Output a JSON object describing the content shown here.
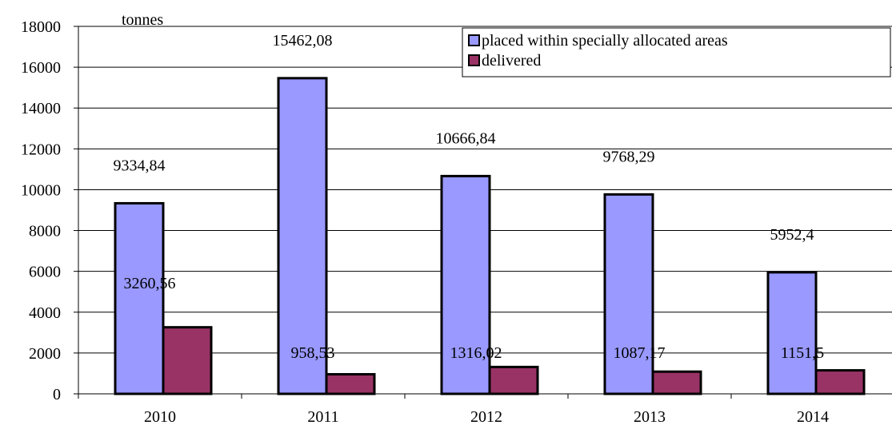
{
  "chart_data": {
    "type": "bar",
    "ylabel": "tonnes",
    "categories": [
      "2010",
      "2011",
      "2012",
      "2013",
      "2014"
    ],
    "ylim": [
      0,
      18000
    ],
    "yticks": [
      "0",
      "2000",
      "4000",
      "6000",
      "8000",
      "10000",
      "12000",
      "14000",
      "16000",
      "18000"
    ],
    "grid": true,
    "legend_position": "top-right",
    "series": [
      {
        "name": "placed within specially allocated areas",
        "color": "#9999ff",
        "values": [
          9334.84,
          15462.08,
          10666.84,
          9768.29,
          5952.4
        ],
        "labels": [
          "9334,84",
          "15462,08",
          "10666,84",
          "9768,29",
          "5952,4"
        ]
      },
      {
        "name": "delivered",
        "color": "#993366",
        "values": [
          3260.56,
          958.53,
          1316.02,
          1087.17,
          1151.5
        ],
        "labels": [
          "3260,56",
          "958,53",
          "1316,02",
          "1087,17",
          "1151,5"
        ]
      }
    ]
  }
}
